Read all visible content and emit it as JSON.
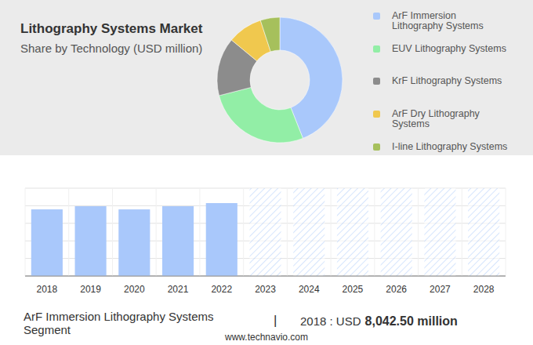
{
  "chart_data": [
    {
      "type": "pie",
      "title": "Lithography Systems Market",
      "subtitle": "Share by Technology (USD million)",
      "categories": [
        "ArF Immersion Lithography Systems",
        "EUV Lithography Systems",
        "KrF Lithography Systems",
        "ArF Dry Lithography Systems",
        "I-line Lithography Systems"
      ],
      "values": [
        44,
        27,
        15,
        9,
        5
      ],
      "colors": [
        "#a9c8fb",
        "#92eea6",
        "#8c8c8c",
        "#f0c84e",
        "#a6c05c"
      ],
      "legend": "right"
    },
    {
      "type": "bar",
      "categories": [
        "2018",
        "2019",
        "2020",
        "2021",
        "2022",
        "2023",
        "2024",
        "2025",
        "2026",
        "2027",
        "2028"
      ],
      "values": [
        8042.5,
        8420,
        8040,
        8420,
        8800,
        null,
        null,
        null,
        null,
        null,
        null
      ],
      "color": "#a9c8fb",
      "ylim": [
        0,
        10600
      ],
      "yticks": [
        0,
        2120,
        4240,
        6360,
        8480,
        10600
      ],
      "grid": true,
      "tick_labels": "x"
    }
  ],
  "footer": {
    "segment": "ArF Immersion Lithography Systems Segment",
    "separator": "|",
    "year_text": "2018 : USD",
    "value_text": "8,042.50 million",
    "source": "www.technavio.com"
  }
}
